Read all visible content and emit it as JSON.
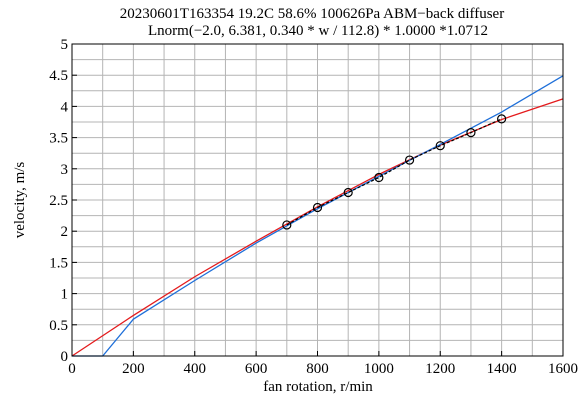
{
  "chart_data": {
    "type": "line",
    "title": "20230601T163354 19.2C 58.6% 100626Pa ABM−back diffuser",
    "subtitle": "Lnorm(−2.0, 6.381, 0.340 * w / 112.8) * 1.0000 *1.0712",
    "xlabel": "fan rotation, r/min",
    "ylabel": "velocity, m/s",
    "xlim": [
      0,
      1600
    ],
    "ylim": [
      0,
      5
    ],
    "x_ticks": [
      0,
      200,
      400,
      600,
      800,
      1000,
      1200,
      1400,
      1600
    ],
    "y_ticks": [
      0,
      0.5,
      1,
      1.5,
      2,
      2.5,
      3,
      3.5,
      4,
      4.5,
      5
    ],
    "x_tick_labels": [
      "0",
      "200",
      "400",
      "600",
      "800",
      "1000",
      "1200",
      "1400",
      "1600"
    ],
    "y_tick_labels": [
      "0",
      "0.5",
      "1",
      "1.5",
      "2",
      "2.5",
      "3",
      "3.5",
      "4",
      "4.5",
      "5"
    ],
    "grid": true,
    "series": [
      {
        "kind": "line",
        "color": "#e41a1c",
        "x": [
          0,
          200,
          400,
          600,
          800,
          1000,
          1200,
          1400,
          1600
        ],
        "y": [
          0.0,
          0.65,
          1.27,
          1.84,
          2.39,
          2.91,
          3.38,
          3.79,
          4.12
        ]
      },
      {
        "kind": "line",
        "color": "#1e6fd9",
        "x": [
          0,
          100,
          200,
          400,
          600,
          800,
          1000,
          1200,
          1400,
          1600
        ],
        "y": [
          0.0,
          0.0,
          0.59,
          1.21,
          1.81,
          2.36,
          2.88,
          3.39,
          3.91,
          4.49
        ]
      },
      {
        "kind": "dashed-line-with-markers",
        "color": "#000000",
        "x": [
          700,
          800,
          900,
          1000,
          1100,
          1200,
          1300,
          1400
        ],
        "y": [
          2.1,
          2.38,
          2.62,
          2.86,
          3.14,
          3.37,
          3.58,
          3.8
        ]
      }
    ]
  }
}
